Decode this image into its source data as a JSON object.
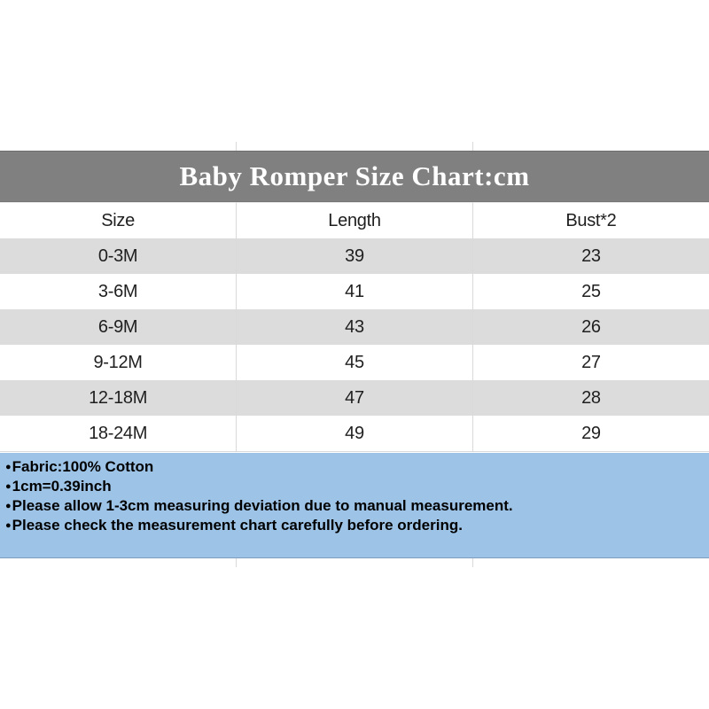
{
  "banner": {
    "title": "Baby Romper Size Chart:cm",
    "bg_color": "#808080",
    "text_color": "#ffffff"
  },
  "size_chart": {
    "columns": [
      "Size",
      "Length",
      "Bust*2"
    ],
    "rows": [
      {
        "size": "0-3M",
        "length": "39",
        "bust2": "23"
      },
      {
        "size": "3-6M",
        "length": "41",
        "bust2": "25"
      },
      {
        "size": "6-9M",
        "length": "43",
        "bust2": "26"
      },
      {
        "size": "9-12M",
        "length": "45",
        "bust2": "27"
      },
      {
        "size": "12-18M",
        "length": "47",
        "bust2": "28"
      },
      {
        "size": "18-24M",
        "length": "49",
        "bust2": "29"
      }
    ],
    "alt_row_color": "#dcdcdc"
  },
  "notes": {
    "bg_color": "#9dc3e6",
    "bullet": "●",
    "items": [
      "Fabric:100% Cotton",
      "1cm=0.39inch",
      "Please allow 1-3cm measuring deviation due to manual measurement.",
      "Please check the measurement chart carefully before ordering."
    ]
  },
  "chart_data": {
    "type": "table",
    "title": "Baby Romper Size Chart:cm",
    "columns": [
      "Size",
      "Length",
      "Bust*2"
    ],
    "rows": [
      [
        "0-3M",
        39,
        23
      ],
      [
        "3-6M",
        41,
        25
      ],
      [
        "6-9M",
        43,
        26
      ],
      [
        "9-12M",
        45,
        27
      ],
      [
        "12-18M",
        47,
        28
      ],
      [
        "18-24M",
        49,
        29
      ]
    ]
  }
}
